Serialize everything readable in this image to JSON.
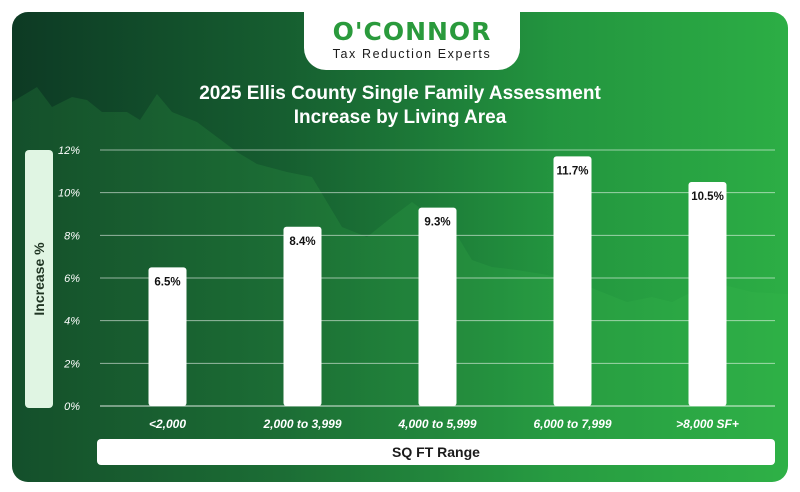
{
  "brand": {
    "name": "O'CONNOR",
    "tagline": "Tax Reduction Experts"
  },
  "colors": {
    "brand_green": "#2a9a3c",
    "bar": "#ffffff",
    "grid": "#ffffff"
  },
  "chart_data": {
    "type": "bar",
    "title": "2025 Ellis County Single Family Assessment Increase by Living Area",
    "title_lines": [
      "2025 Ellis County Single Family Assessment",
      "Increase by Living Area"
    ],
    "xlabel": "SQ FT Range",
    "ylabel": "Increase %",
    "categories": [
      "<2,000",
      "2,000 to 3,999",
      "4,000 to 5,999",
      "6,000 to 7,999",
      ">8,000 SF+"
    ],
    "values": [
      6.5,
      8.4,
      9.3,
      11.7,
      10.5
    ],
    "value_labels": [
      "6.5%",
      "8.4%",
      "9.3%",
      "11.7%",
      "10.5%"
    ],
    "ylim": [
      0,
      12
    ],
    "yticks": [
      0,
      2,
      4,
      6,
      8,
      10,
      12
    ],
    "ytick_labels": [
      "0%",
      "2%",
      "4%",
      "6%",
      "8%",
      "10%",
      "12%"
    ],
    "grid": true,
    "legend": "none"
  }
}
